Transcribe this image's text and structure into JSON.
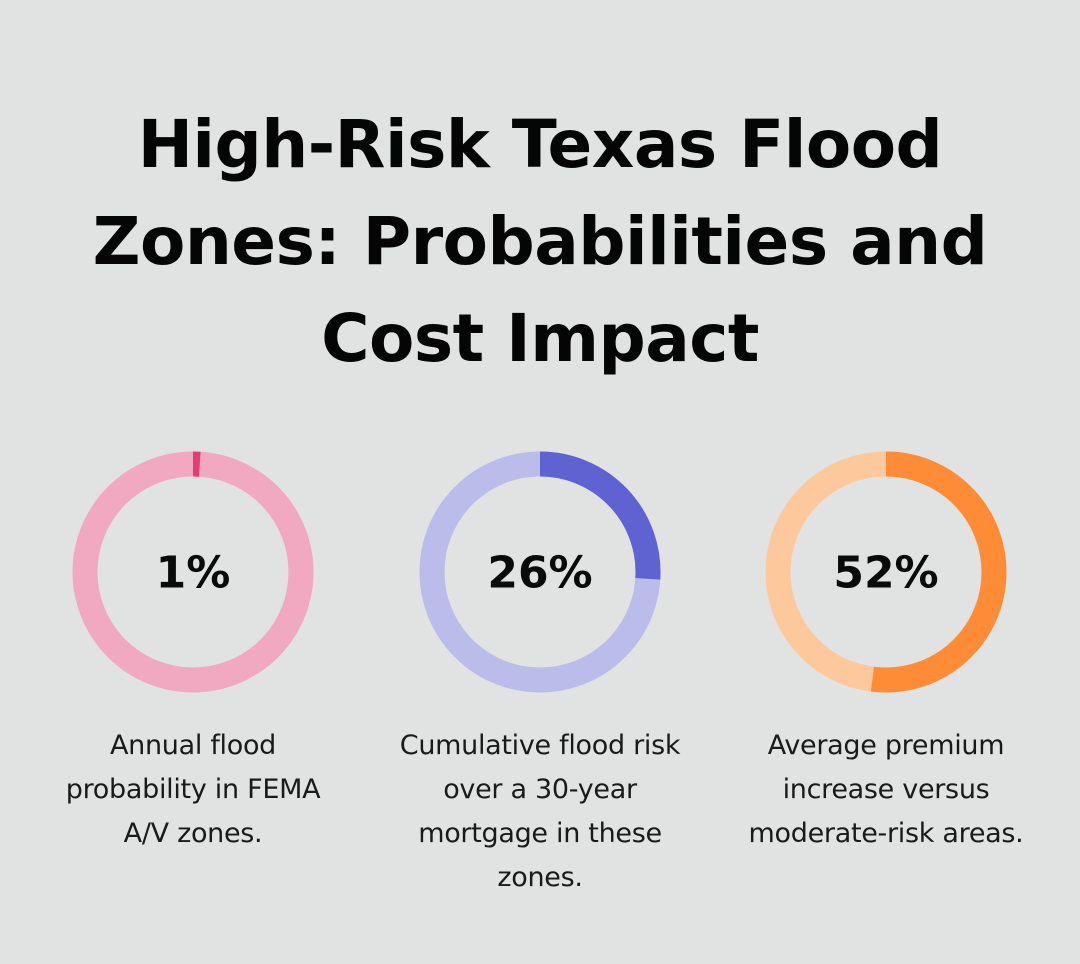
{
  "title": "High-Risk Texas Flood Zones: Probabilities and Cost Impact",
  "chart_data": [
    {
      "type": "pie",
      "variant": "donut",
      "value": 1,
      "unit": "%",
      "label": "1%",
      "caption": "Annual flood probability in FEMA A/V zones.",
      "colors": {
        "filled": "#e53c76",
        "track": "#f1a9c1"
      }
    },
    {
      "type": "pie",
      "variant": "donut",
      "value": 26,
      "unit": "%",
      "label": "26%",
      "caption": "Cumulative flood risk over a 30-year mortgage in these zones.",
      "colors": {
        "filled": "#5f63d2",
        "track": "#babce9"
      }
    },
    {
      "type": "pie",
      "variant": "donut",
      "value": 52,
      "unit": "%",
      "label": "52%",
      "caption": "Average premium increase versus moderate-risk areas.",
      "colors": {
        "filled": "#fe8b35",
        "track": "#fec89d"
      }
    }
  ]
}
